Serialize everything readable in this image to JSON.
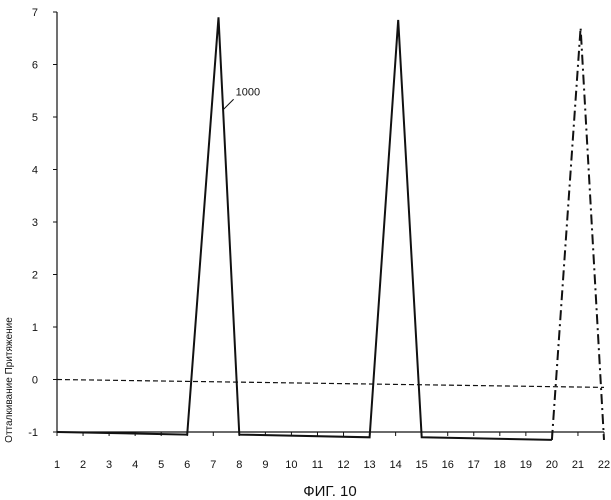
{
  "chart_data": {
    "type": "line",
    "title": "",
    "caption": "ФИГ. 10",
    "xlabel": "",
    "ylabel": "Отталкивание Притяжение",
    "xlim": [
      1,
      22
    ],
    "ylim": [
      -1,
      7
    ],
    "x_ticks": [
      1,
      2,
      3,
      4,
      5,
      6,
      7,
      8,
      9,
      10,
      11,
      12,
      13,
      14,
      15,
      16,
      17,
      18,
      19,
      20,
      21,
      22
    ],
    "y_ticks": [
      -1,
      0,
      1,
      2,
      3,
      4,
      5,
      6,
      7
    ],
    "grid": false,
    "legend": "none",
    "series": [
      {
        "style": "solid",
        "x": [
          1,
          6,
          7.2,
          8,
          13,
          14.1,
          15,
          20
        ],
        "y": [
          -1,
          -1.05,
          6.9,
          -1.05,
          -1.1,
          6.85,
          -1.1,
          -1.15
        ]
      },
      {
        "style": "dashed",
        "x": [
          1,
          22
        ],
        "y": [
          0,
          -0.15
        ]
      },
      {
        "style": "dash-dot",
        "x": [
          20,
          21.1,
          22
        ],
        "y": [
          -1.15,
          6.7,
          -1.15
        ]
      }
    ],
    "annotations": [
      {
        "text": "1000",
        "x": 7.55,
        "y": 5.3
      }
    ]
  }
}
